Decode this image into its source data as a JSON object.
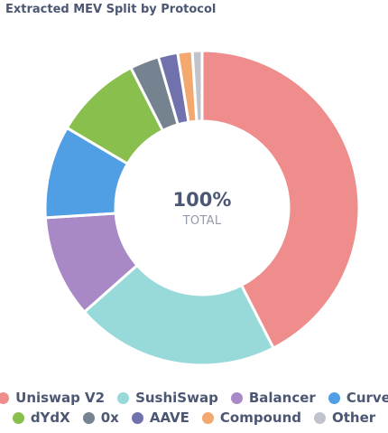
{
  "chart_data": {
    "type": "pie",
    "variant": "donut",
    "title": "Extracted MEV Split by Protocol",
    "center": {
      "value": "100%",
      "label": "TOTAL"
    },
    "categories": [
      "Uniswap V2",
      "SushiSwap",
      "Balancer",
      "Curve",
      "dYdX",
      "0x",
      "AAVE",
      "Compound",
      "Other"
    ],
    "values": [
      42.5,
      21.0,
      10.5,
      9.5,
      9.0,
      3.0,
      2.0,
      1.5,
      1.0
    ],
    "colors": [
      "#ef8c8c",
      "#98d9d9",
      "#a989c5",
      "#509ee3",
      "#88bf4d",
      "#74838f",
      "#7172ad",
      "#f2a86f",
      "#c1c3cc"
    ],
    "legend_placement": "bottom"
  }
}
